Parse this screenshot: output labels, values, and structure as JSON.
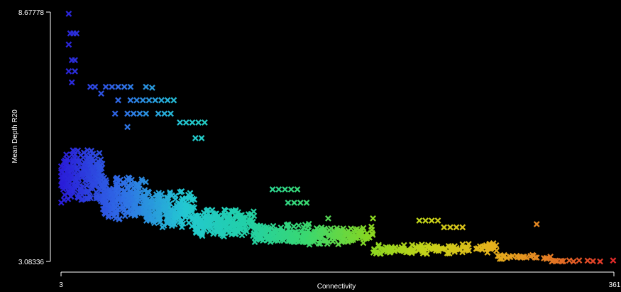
{
  "chart_data": {
    "type": "scatter",
    "title": "",
    "xlabel": "Connectivity",
    "ylabel": "Mean Depth R20",
    "x_tick_labels": [
      "3",
      "361"
    ],
    "y_tick_labels": [
      "8.67778",
      "3.08336"
    ],
    "xlim": [
      3,
      361
    ],
    "ylim": [
      3.08336,
      8.67778
    ],
    "marker": "x",
    "background": "#000000",
    "color_scale": [
      "#2a1cd8",
      "#2f6ee6",
      "#23c8d2",
      "#22d0a8",
      "#3ad870",
      "#86d622",
      "#c8d21a",
      "#e6b21c",
      "#e27824",
      "#e02a2a"
    ],
    "clusters": [
      {
        "x_range": [
          3,
          30
        ],
        "y_center": 5.0,
        "y_spread": 0.65,
        "count": 260
      },
      {
        "x_range": [
          30,
          58
        ],
        "y_center": 4.5,
        "y_spread": 0.55,
        "count": 240
      },
      {
        "x_range": [
          58,
          90
        ],
        "y_center": 4.25,
        "y_spread": 0.45,
        "count": 220
      },
      {
        "x_range": [
          90,
          128
        ],
        "y_center": 3.95,
        "y_spread": 0.35,
        "count": 200
      },
      {
        "x_range": [
          128,
          165
        ],
        "y_center": 3.7,
        "y_spread": 0.25,
        "count": 170
      },
      {
        "x_range": [
          165,
          205
        ],
        "y_center": 3.65,
        "y_spread": 0.25,
        "count": 130
      },
      {
        "x_range": [
          205,
          245
        ],
        "y_center": 3.35,
        "y_spread": 0.12,
        "count": 80
      },
      {
        "x_range": [
          245,
          285
        ],
        "y_center": 3.38,
        "y_spread": 0.12,
        "count": 60
      },
      {
        "x_range": [
          285,
          320
        ],
        "y_center": 3.18,
        "y_spread": 0.07,
        "count": 30
      },
      {
        "x_range": [
          320,
          361
        ],
        "y_center": 3.09,
        "y_spread": 0.02,
        "count": 14
      }
    ],
    "outliers": [
      {
        "x": 8,
        "y": 8.64
      },
      {
        "x": 9,
        "y": 8.2
      },
      {
        "x": 11,
        "y": 8.2
      },
      {
        "x": 13,
        "y": 8.2
      },
      {
        "x": 8,
        "y": 7.95
      },
      {
        "x": 10,
        "y": 7.6
      },
      {
        "x": 12,
        "y": 7.6
      },
      {
        "x": 8,
        "y": 7.35
      },
      {
        "x": 12,
        "y": 7.35
      },
      {
        "x": 10,
        "y": 7.1
      },
      {
        "x": 22,
        "y": 7.0
      },
      {
        "x": 25,
        "y": 7.0
      },
      {
        "x": 32,
        "y": 7.0
      },
      {
        "x": 36,
        "y": 7.0
      },
      {
        "x": 40,
        "y": 7.0
      },
      {
        "x": 44,
        "y": 7.0
      },
      {
        "x": 48,
        "y": 7.0
      },
      {
        "x": 58,
        "y": 7.0
      },
      {
        "x": 62,
        "y": 6.98
      },
      {
        "x": 29,
        "y": 6.85
      },
      {
        "x": 40,
        "y": 6.7
      },
      {
        "x": 48,
        "y": 6.7
      },
      {
        "x": 52,
        "y": 6.7
      },
      {
        "x": 56,
        "y": 6.7
      },
      {
        "x": 60,
        "y": 6.7
      },
      {
        "x": 64,
        "y": 6.7
      },
      {
        "x": 68,
        "y": 6.7
      },
      {
        "x": 72,
        "y": 6.7
      },
      {
        "x": 76,
        "y": 6.7
      },
      {
        "x": 38,
        "y": 6.4
      },
      {
        "x": 46,
        "y": 6.4
      },
      {
        "x": 50,
        "y": 6.4
      },
      {
        "x": 54,
        "y": 6.4
      },
      {
        "x": 58,
        "y": 6.4
      },
      {
        "x": 66,
        "y": 6.4
      },
      {
        "x": 70,
        "y": 6.4
      },
      {
        "x": 74,
        "y": 6.4
      },
      {
        "x": 80,
        "y": 6.2
      },
      {
        "x": 84,
        "y": 6.2
      },
      {
        "x": 88,
        "y": 6.2
      },
      {
        "x": 92,
        "y": 6.2
      },
      {
        "x": 96,
        "y": 6.2
      },
      {
        "x": 46,
        "y": 6.1
      },
      {
        "x": 90,
        "y": 5.85
      },
      {
        "x": 94,
        "y": 5.85
      },
      {
        "x": 140,
        "y": 4.7
      },
      {
        "x": 144,
        "y": 4.7
      },
      {
        "x": 148,
        "y": 4.7
      },
      {
        "x": 152,
        "y": 4.7
      },
      {
        "x": 156,
        "y": 4.7
      },
      {
        "x": 150,
        "y": 4.4
      },
      {
        "x": 154,
        "y": 4.4
      },
      {
        "x": 158,
        "y": 4.4
      },
      {
        "x": 162,
        "y": 4.4
      },
      {
        "x": 176,
        "y": 4.05
      },
      {
        "x": 205,
        "y": 4.05
      },
      {
        "x": 235,
        "y": 4.0
      },
      {
        "x": 239,
        "y": 4.0
      },
      {
        "x": 243,
        "y": 4.0
      },
      {
        "x": 247,
        "y": 4.0
      },
      {
        "x": 251,
        "y": 3.85
      },
      {
        "x": 255,
        "y": 3.85
      },
      {
        "x": 259,
        "y": 3.85
      },
      {
        "x": 263,
        "y": 3.85
      },
      {
        "x": 311,
        "y": 3.92
      }
    ]
  }
}
